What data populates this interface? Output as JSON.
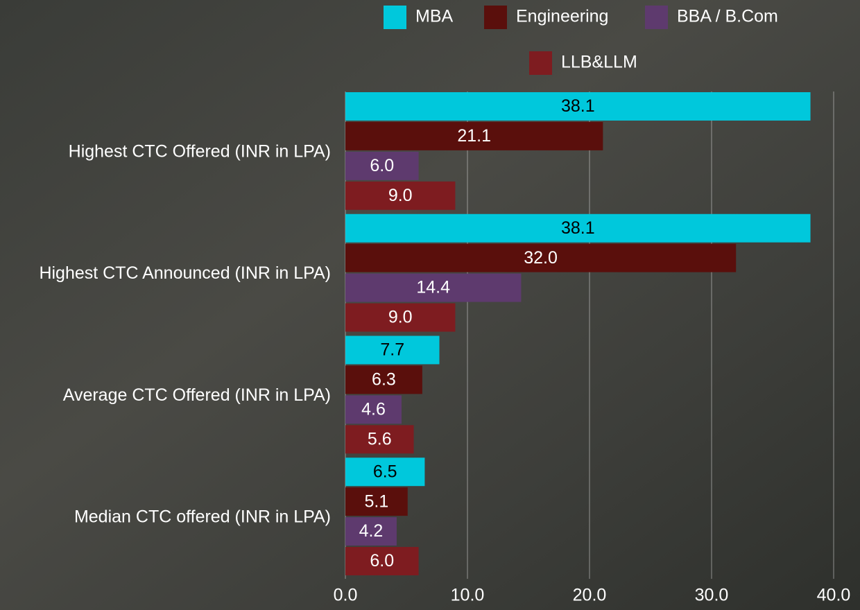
{
  "chart_data": {
    "type": "hbar",
    "categories": [
      "Highest CTC Offered (INR in LPA)",
      "Highest CTC Announced (INR in LPA)",
      "Average CTC Offered (INR in LPA)",
      "Median CTC offered (INR in LPA)"
    ],
    "series": [
      {
        "name": "MBA",
        "color": "#00c8dc",
        "values": [
          38.1,
          38.1,
          7.7,
          6.5
        ],
        "value_labels": [
          "38.1",
          "38.1",
          "7.7",
          "6.5"
        ]
      },
      {
        "name": "Engineering",
        "color": "#5a0f0c",
        "values": [
          21.1,
          32,
          6.3,
          5.1
        ],
        "value_labels": [
          "21.1",
          "32.0",
          "6.3",
          "5.1"
        ]
      },
      {
        "name": "BBA / B.Com",
        "color": "#5e3a6e",
        "values": [
          6,
          14.4,
          4.6,
          4.2
        ],
        "value_labels": [
          "6.0",
          "14.4",
          "4.6",
          "4.2"
        ]
      },
      {
        "name": "LLB&LLM",
        "color": "#7e1c20",
        "values": [
          9,
          9,
          5.6,
          6
        ],
        "value_labels": [
          "9.0",
          "9.0",
          "5.6",
          "6.0"
        ]
      }
    ],
    "xlim": [
      0,
      40
    ],
    "xticks": [
      {
        "value": 0,
        "label": "0.0"
      },
      {
        "value": 10,
        "label": "10.0"
      },
      {
        "value": 20,
        "label": "20.0"
      },
      {
        "value": 30,
        "label": "30.0"
      },
      {
        "value": 40,
        "label": "40.0"
      }
    ],
    "grid": true,
    "legend": "top"
  }
}
